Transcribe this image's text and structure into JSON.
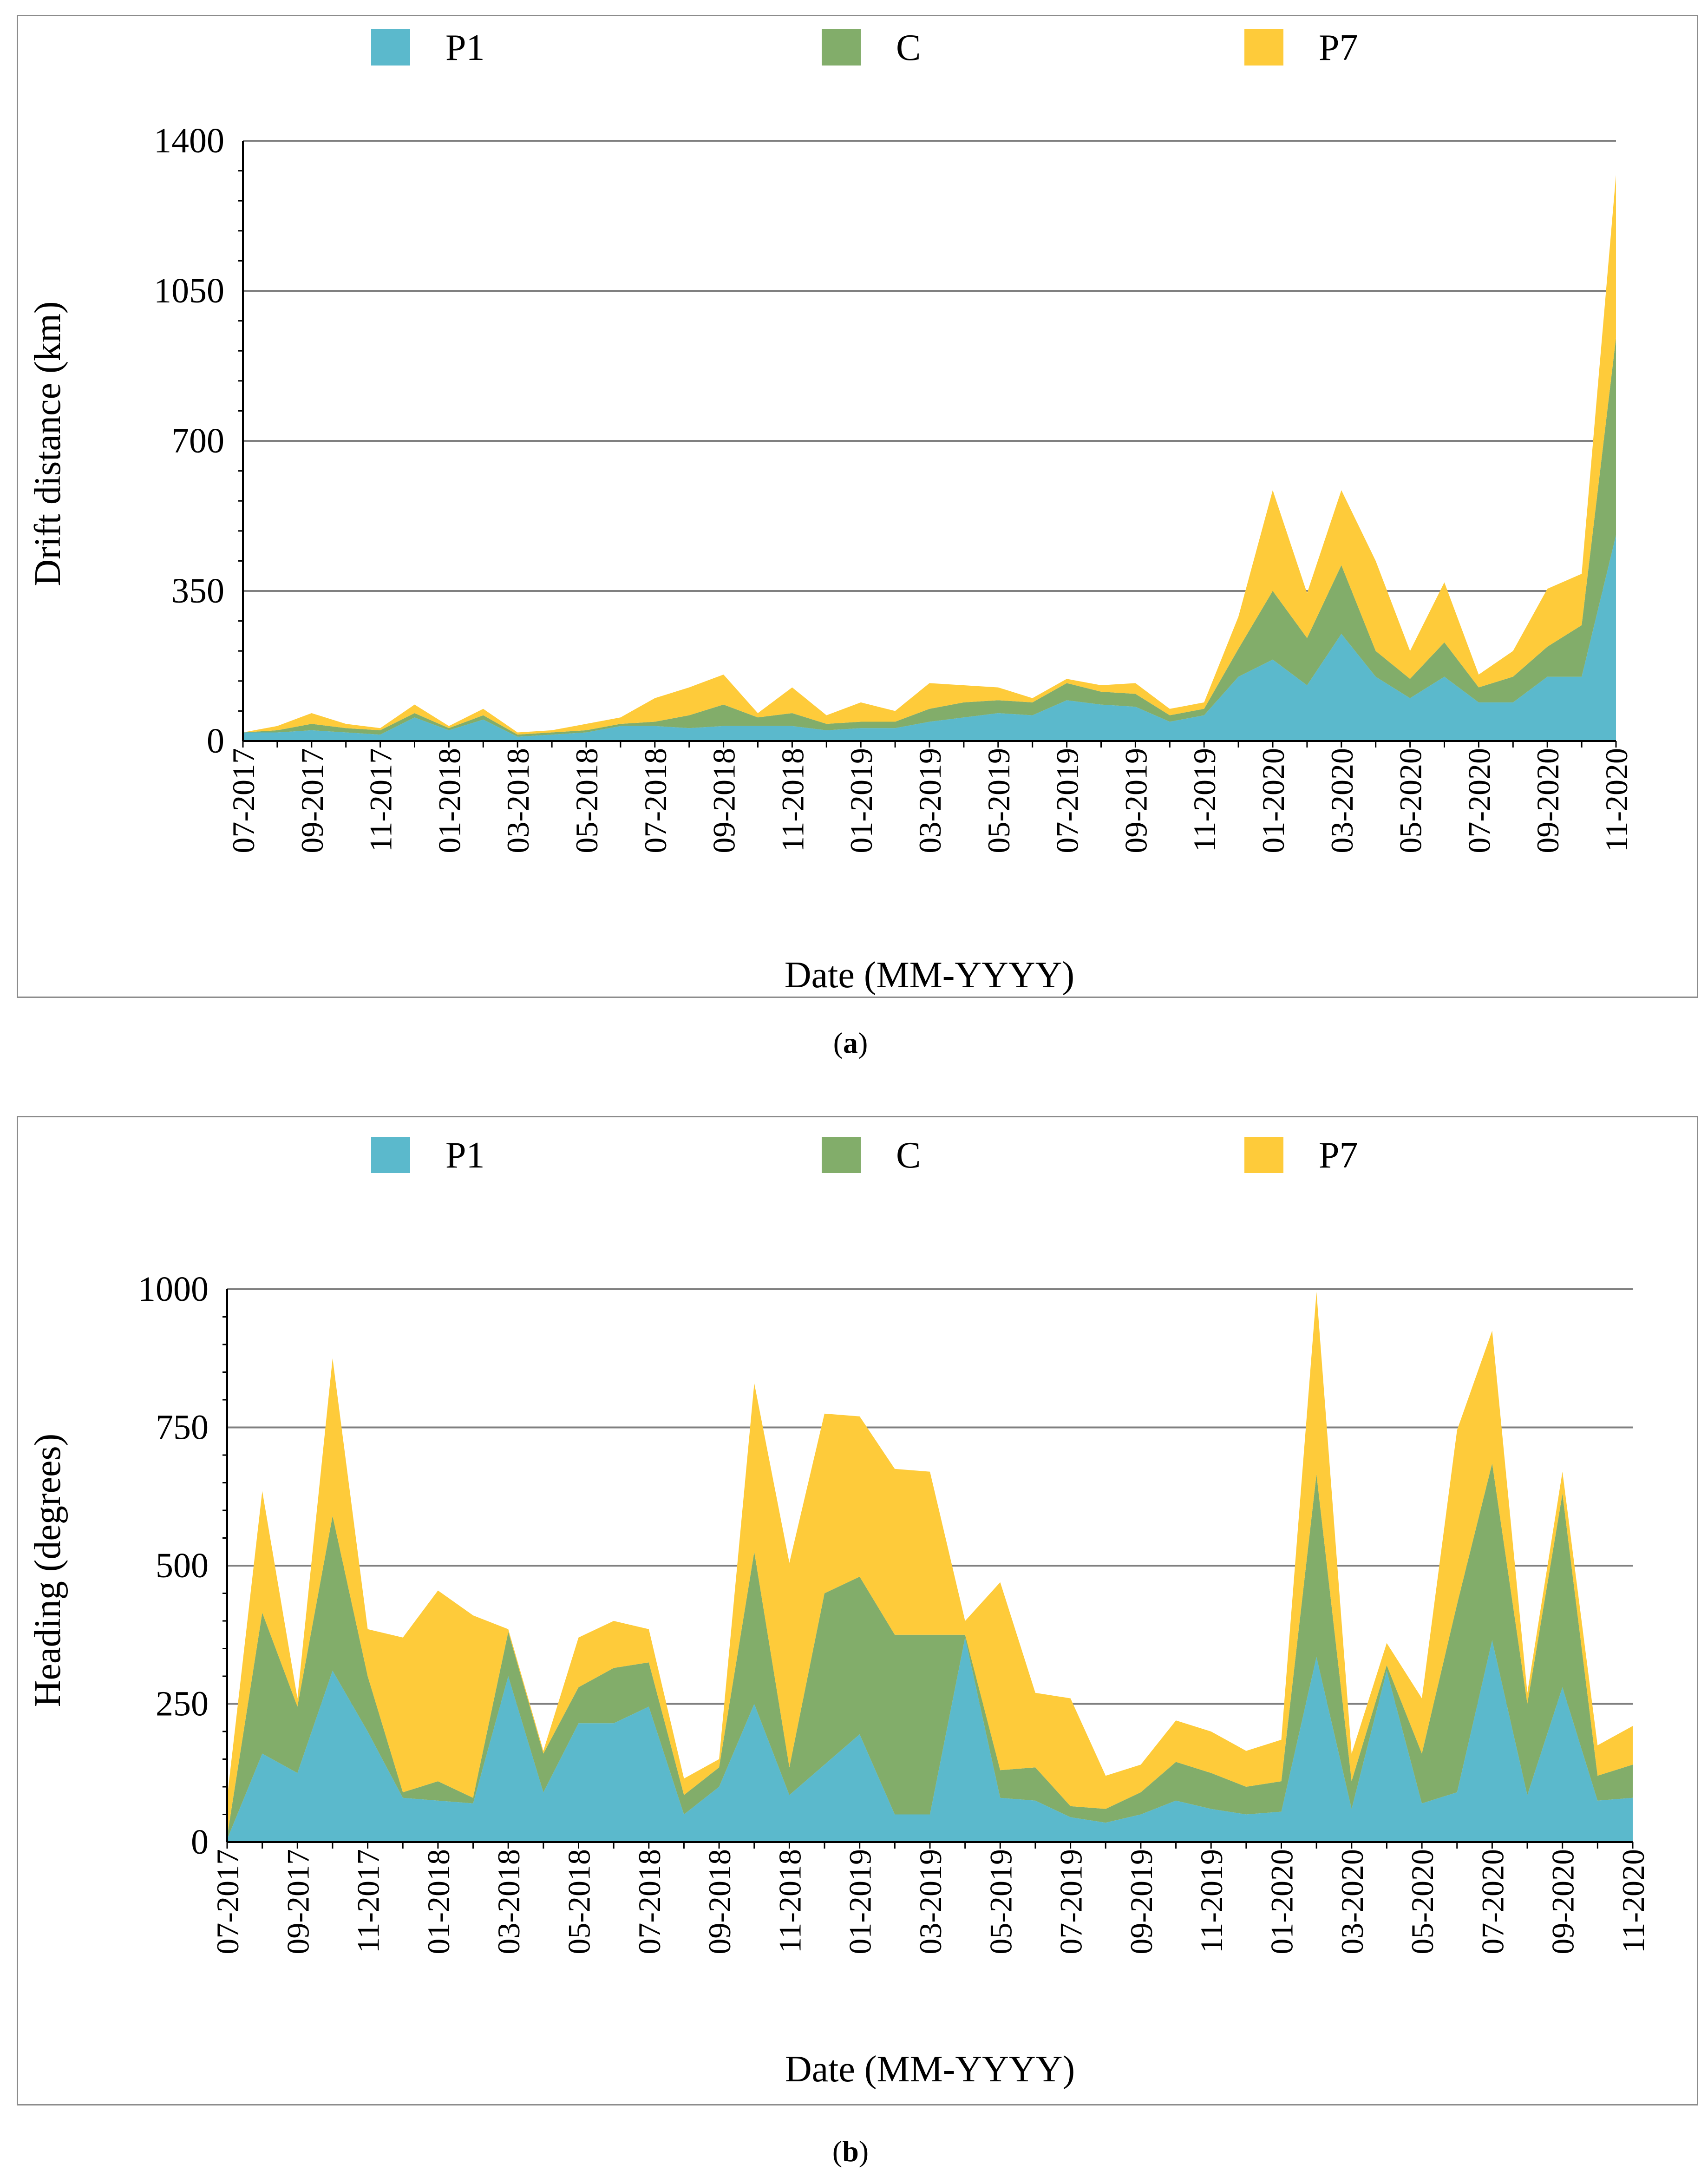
{
  "colors": {
    "P1": "#5bb9cc",
    "C": "#82ad6a",
    "P7": "#fecb3a",
    "grid": "#808080"
  },
  "captions": {
    "a": "a",
    "b": "b"
  },
  "chart_data": [
    {
      "type": "area",
      "panel": "a",
      "xlabel": "Date (MM-YYYY)",
      "ylabel": "Drift distance (km)",
      "ylim": [
        0,
        1400
      ],
      "yticks": [
        0,
        350,
        700,
        1050,
        1400
      ],
      "grid": true,
      "legend_position": "top",
      "x": [
        "07-2017",
        "08-2017",
        "09-2017",
        "10-2017",
        "11-2017",
        "12-2017",
        "01-2018",
        "02-2018",
        "03-2018",
        "04-2018",
        "05-2018",
        "06-2018",
        "07-2018",
        "08-2018",
        "09-2018",
        "10-2018",
        "11-2018",
        "12-2018",
        "01-2019",
        "02-2019",
        "03-2019",
        "04-2019",
        "05-2019",
        "06-2019",
        "07-2019",
        "08-2019",
        "09-2019",
        "10-2019",
        "11-2019",
        "12-2019",
        "01-2020",
        "02-2020",
        "03-2020",
        "04-2020",
        "05-2020",
        "06-2020",
        "07-2020",
        "08-2020",
        "09-2020",
        "10-2020",
        "11-2020"
      ],
      "xtick_labels": [
        "07-2017",
        "09-2017",
        "11-2017",
        "01-2018",
        "03-2018",
        "05-2018",
        "07-2018",
        "09-2018",
        "11-2018",
        "01-2019",
        "03-2019",
        "05-2019",
        "07-2019",
        "09-2019",
        "11-2019",
        "01-2020",
        "03-2020",
        "05-2020",
        "07-2020",
        "09-2020",
        "11-2020"
      ],
      "series": [
        {
          "name": "P1",
          "values": [
            20,
            20,
            25,
            20,
            15,
            55,
            25,
            50,
            10,
            15,
            20,
            35,
            35,
            30,
            35,
            35,
            35,
            25,
            30,
            30,
            45,
            55,
            65,
            60,
            95,
            85,
            80,
            45,
            60,
            150,
            190,
            130,
            250,
            150,
            100,
            150,
            90,
            90,
            150,
            150,
            480
          ]
        },
        {
          "name": "C",
          "values": [
            0,
            5,
            15,
            10,
            10,
            10,
            5,
            10,
            5,
            5,
            5,
            5,
            10,
            30,
            50,
            20,
            30,
            15,
            15,
            15,
            30,
            35,
            30,
            30,
            40,
            30,
            30,
            15,
            15,
            65,
            160,
            110,
            160,
            60,
            45,
            80,
            35,
            60,
            70,
            120,
            460
          ]
        },
        {
          "name": "P7",
          "values": [
            0,
            10,
            25,
            10,
            5,
            20,
            5,
            15,
            5,
            5,
            15,
            15,
            55,
            65,
            70,
            10,
            60,
            20,
            45,
            25,
            60,
            40,
            30,
            10,
            10,
            15,
            25,
            15,
            15,
            75,
            235,
            105,
            175,
            210,
            65,
            140,
            30,
            60,
            135,
            120,
            380
          ]
        }
      ]
    },
    {
      "type": "area",
      "panel": "b",
      "xlabel": "Date (MM-YYYY)",
      "ylabel": "Heading (degrees)",
      "ylim": [
        0,
        1000
      ],
      "yticks": [
        0,
        250,
        500,
        750,
        1000
      ],
      "grid": true,
      "legend_position": "top",
      "x": [
        "07-2017",
        "08-2017",
        "09-2017",
        "10-2017",
        "11-2017",
        "12-2017",
        "01-2018",
        "02-2018",
        "03-2018",
        "04-2018",
        "05-2018",
        "06-2018",
        "07-2018",
        "08-2018",
        "09-2018",
        "10-2018",
        "11-2018",
        "12-2018",
        "01-2019",
        "02-2019",
        "03-2019",
        "04-2019",
        "05-2019",
        "06-2019",
        "07-2019",
        "08-2019",
        "09-2019",
        "10-2019",
        "11-2019",
        "12-2019",
        "01-2020",
        "02-2020",
        "03-2020",
        "04-2020",
        "05-2020",
        "06-2020",
        "07-2020",
        "08-2020",
        "09-2020",
        "10-2020",
        "11-2020"
      ],
      "xtick_labels": [
        "07-2017",
        "09-2017",
        "11-2017",
        "01-2018",
        "03-2018",
        "05-2018",
        "07-2018",
        "09-2018",
        "11-2018",
        "01-2019",
        "03-2019",
        "05-2019",
        "07-2019",
        "09-2019",
        "11-2019",
        "01-2020",
        "03-2020",
        "05-2020",
        "07-2020",
        "09-2020",
        "11-2020"
      ],
      "series": [
        {
          "name": "P1",
          "values": [
            5,
            160,
            125,
            310,
            200,
            80,
            75,
            70,
            300,
            90,
            215,
            215,
            245,
            50,
            100,
            250,
            85,
            140,
            195,
            50,
            50,
            370,
            80,
            75,
            45,
            35,
            50,
            75,
            60,
            50,
            55,
            335,
            60,
            310,
            70,
            90,
            365,
            85,
            280,
            75,
            80
          ]
        },
        {
          "name": "C",
          "values": [
            5,
            255,
            120,
            280,
            100,
            10,
            35,
            10,
            80,
            70,
            65,
            100,
            80,
            35,
            35,
            275,
            50,
            310,
            285,
            325,
            325,
            5,
            50,
            60,
            20,
            25,
            40,
            70,
            65,
            50,
            55,
            330,
            50,
            10,
            90,
            340,
            320,
            165,
            350,
            45,
            60
          ]
        },
        {
          "name": "P7",
          "values": [
            70,
            220,
            15,
            285,
            85,
            280,
            345,
            330,
            5,
            5,
            90,
            85,
            60,
            30,
            15,
            305,
            370,
            325,
            290,
            300,
            295,
            25,
            340,
            135,
            195,
            60,
            50,
            75,
            75,
            65,
            75,
            330,
            50,
            40,
            100,
            315,
            240,
            20,
            40,
            55,
            70
          ]
        }
      ]
    }
  ]
}
